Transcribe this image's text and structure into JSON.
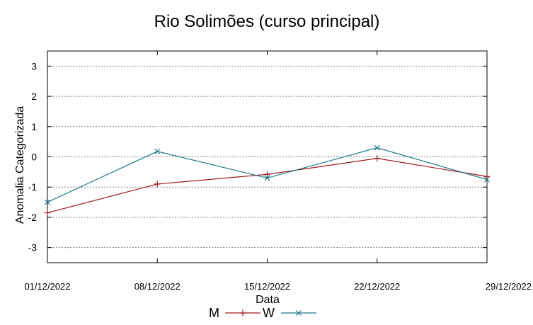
{
  "chart_data": {
    "type": "line",
    "title": "Rio Solimões (curso principal)",
    "xlabel": "Data",
    "ylabel": "Anomalia Categorizada",
    "categories": [
      "01/12/2022",
      "08/12/2022",
      "15/12/2022",
      "22/12/2022",
      "29/12/2022"
    ],
    "ylim": [
      -3.5,
      3.5
    ],
    "yticks": [
      3,
      2,
      1,
      0,
      -1,
      -2,
      -3
    ],
    "ytick_labels": [
      "3",
      "2",
      "1",
      "0",
      "-1",
      "-2",
      "-3"
    ],
    "grid": true,
    "legend_position": "bottom-center",
    "series": [
      {
        "name": "M",
        "values": [
          -1.85,
          -0.9,
          -0.58,
          -0.05,
          -0.65
        ],
        "color": "#a01820",
        "marker": "plus"
      },
      {
        "name": "W",
        "values": [
          -1.5,
          0.18,
          -0.7,
          0.3,
          -0.75
        ],
        "color": "#1a7a8a",
        "marker": "cross"
      }
    ]
  }
}
